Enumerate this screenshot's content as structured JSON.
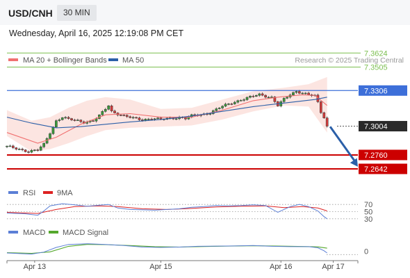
{
  "header": {
    "symbol": "USD/CNH",
    "timeframe": "30 MIN",
    "timestamp": "Wednesday, April 16, 2025 12:19:08 PM CET"
  },
  "colors": {
    "price": "#3a3a3a",
    "up_candle": "#3a9a3a",
    "down_candle": "#d23a3a",
    "ma20": "#f07070",
    "bollinger_fill": "#fbe0dc",
    "ma50": "#2b5fa8",
    "resistance": "#7bbf4f",
    "pivot": "#3d6fd9",
    "support": "#cc0000",
    "current_price": "#2a2a2a",
    "arrow": "#2b5fa8",
    "rsi": "#5b7fd6",
    "rsi_ma": "#dd2222",
    "macd": "#5b7fd6",
    "macd_signal": "#55a82d",
    "muted_text": "#999999"
  },
  "chart_data": [
    {
      "type": "candlestick",
      "title": "USD/CNH",
      "legend": [
        {
          "name": "MA 20 + Bollinger Bands",
          "color": "#f07070"
        },
        {
          "name": "MA 50",
          "color": "#2b5fa8"
        }
      ],
      "legend_placement": "top-left",
      "attribution": "Research © 2025 Trading Central",
      "ylim": [
        7.253,
        7.372
      ],
      "grid": false,
      "levels": [
        {
          "label": "7.3624",
          "value": 7.3624,
          "kind": "resistance"
        },
        {
          "label": "7.3505",
          "value": 7.3505,
          "kind": "resistance"
        },
        {
          "label": "7.3306",
          "value": 7.3306,
          "kind": "pivot"
        },
        {
          "label": "7.3004",
          "value": 7.3004,
          "kind": "last"
        },
        {
          "label": "7.2760",
          "value": 7.276,
          "kind": "support"
        },
        {
          "label": "7.2642",
          "value": 7.2642,
          "kind": "support"
        }
      ],
      "price_path": [
        [
          0,
          7.283
        ],
        [
          4,
          7.281
        ],
        [
          7,
          7.279
        ],
        [
          10,
          7.28
        ],
        [
          12,
          7.285
        ],
        [
          14,
          7.295
        ],
        [
          16,
          7.305
        ],
        [
          18,
          7.308
        ],
        [
          20,
          7.306
        ],
        [
          22,
          7.3055
        ],
        [
          25,
          7.304
        ],
        [
          28,
          7.305
        ],
        [
          30,
          7.309
        ],
        [
          32,
          7.315
        ],
        [
          33,
          7.318
        ],
        [
          34,
          7.313
        ],
        [
          36,
          7.311
        ],
        [
          38,
          7.309
        ],
        [
          41,
          7.307
        ],
        [
          44,
          7.306
        ],
        [
          47,
          7.307
        ],
        [
          50,
          7.306
        ],
        [
          53,
          7.307
        ],
        [
          56,
          7.308
        ],
        [
          58,
          7.307
        ],
        [
          60,
          7.309
        ],
        [
          63,
          7.31
        ],
        [
          66,
          7.312
        ],
        [
          69,
          7.316
        ],
        [
          71,
          7.318
        ],
        [
          73,
          7.32
        ],
        [
          76,
          7.323
        ],
        [
          79,
          7.325
        ],
        [
          82,
          7.327
        ],
        [
          84,
          7.326
        ],
        [
          86,
          7.325
        ],
        [
          88,
          7.318
        ],
        [
          90,
          7.323
        ],
        [
          92,
          7.327
        ],
        [
          94,
          7.33
        ],
        [
          96,
          7.329
        ],
        [
          98,
          7.327
        ],
        [
          100,
          7.326
        ],
        [
          101,
          7.32
        ],
        [
          102,
          7.312
        ],
        [
          103,
          7.308
        ],
        [
          104,
          7.3004
        ]
      ],
      "ma20_path": [
        [
          0,
          7.295
        ],
        [
          10,
          7.286
        ],
        [
          16,
          7.291
        ],
        [
          24,
          7.302
        ],
        [
          32,
          7.31
        ],
        [
          40,
          7.311
        ],
        [
          50,
          7.308
        ],
        [
          60,
          7.308
        ],
        [
          70,
          7.314
        ],
        [
          80,
          7.322
        ],
        [
          88,
          7.325
        ],
        [
          96,
          7.327
        ],
        [
          100,
          7.3265
        ],
        [
          104,
          7.318
        ]
      ],
      "ma50_path": [
        [
          0,
          7.308
        ],
        [
          8,
          7.303
        ],
        [
          16,
          7.299
        ],
        [
          24,
          7.3
        ],
        [
          32,
          7.302
        ],
        [
          40,
          7.304
        ],
        [
          50,
          7.306
        ],
        [
          60,
          7.309
        ],
        [
          70,
          7.313
        ],
        [
          80,
          7.317
        ],
        [
          90,
          7.32
        ],
        [
          100,
          7.323
        ],
        [
          104,
          7.325
        ]
      ],
      "bollinger_upper": [
        [
          0,
          7.314
        ],
        [
          8,
          7.305
        ],
        [
          14,
          7.308
        ],
        [
          20,
          7.316
        ],
        [
          26,
          7.322
        ],
        [
          32,
          7.325
        ],
        [
          40,
          7.323
        ],
        [
          50,
          7.315
        ],
        [
          60,
          7.316
        ],
        [
          70,
          7.323
        ],
        [
          80,
          7.33
        ],
        [
          90,
          7.333
        ],
        [
          98,
          7.336
        ],
        [
          104,
          7.342
        ]
      ],
      "bollinger_lower": [
        [
          0,
          7.292
        ],
        [
          8,
          7.279
        ],
        [
          14,
          7.281
        ],
        [
          20,
          7.286
        ],
        [
          26,
          7.292
        ],
        [
          32,
          7.297
        ],
        [
          40,
          7.299
        ],
        [
          50,
          7.3
        ],
        [
          60,
          7.301
        ],
        [
          70,
          7.306
        ],
        [
          80,
          7.313
        ],
        [
          90,
          7.318
        ],
        [
          98,
          7.317
        ],
        [
          104,
          7.295
        ]
      ],
      "arrow": {
        "from": [
          105,
          7.3
        ],
        "to": [
          114,
          7.266
        ]
      },
      "x_ticks": [
        {
          "label": "Apr 13",
          "x": 9
        },
        {
          "label": "Apr 15",
          "x": 50
        },
        {
          "label": "Apr 16",
          "x": 89
        },
        {
          "label": "Apr 17",
          "x": 106
        }
      ],
      "x_range": [
        0,
        114
      ]
    },
    {
      "type": "line",
      "title": "RSI",
      "legend": [
        {
          "name": "RSI",
          "color": "#5b7fd6"
        },
        {
          "name": "9MA",
          "color": "#dd2222"
        }
      ],
      "ylim": [
        20,
        80
      ],
      "levels": [
        {
          "label": "70",
          "value": 70
        },
        {
          "label": "50",
          "value": 50
        },
        {
          "label": "30",
          "value": 30
        }
      ],
      "rsi_path": [
        [
          0,
          46
        ],
        [
          6,
          44
        ],
        [
          10,
          40
        ],
        [
          12,
          52
        ],
        [
          14,
          66
        ],
        [
          18,
          72
        ],
        [
          22,
          69
        ],
        [
          26,
          65
        ],
        [
          30,
          68
        ],
        [
          33,
          70
        ],
        [
          36,
          60
        ],
        [
          40,
          56
        ],
        [
          44,
          55
        ],
        [
          48,
          54
        ],
        [
          52,
          56
        ],
        [
          56,
          58
        ],
        [
          60,
          62
        ],
        [
          64,
          64
        ],
        [
          68,
          67
        ],
        [
          72,
          66
        ],
        [
          76,
          67
        ],
        [
          80,
          69
        ],
        [
          84,
          67
        ],
        [
          88,
          48
        ],
        [
          92,
          64
        ],
        [
          95,
          70
        ],
        [
          98,
          64
        ],
        [
          101,
          52
        ],
        [
          103,
          36
        ],
        [
          104,
          30
        ]
      ],
      "rsi_ma_path": [
        [
          0,
          48
        ],
        [
          10,
          45
        ],
        [
          16,
          56
        ],
        [
          22,
          64
        ],
        [
          30,
          66
        ],
        [
          36,
          64
        ],
        [
          44,
          58
        ],
        [
          52,
          56
        ],
        [
          60,
          59
        ],
        [
          68,
          63
        ],
        [
          76,
          65
        ],
        [
          84,
          66
        ],
        [
          90,
          61
        ],
        [
          96,
          64
        ],
        [
          101,
          60
        ],
        [
          104,
          52
        ]
      ]
    },
    {
      "type": "line",
      "title": "MACD",
      "legend": [
        {
          "name": "MACD",
          "color": "#5b7fd6"
        },
        {
          "name": "MACD Signal",
          "color": "#55a82d"
        }
      ],
      "ylim": [
        -0.004,
        0.008
      ],
      "levels": [
        {
          "label": "0",
          "value": 0
        }
      ],
      "macd_path": [
        [
          0,
          -0.001
        ],
        [
          8,
          -0.0016
        ],
        [
          12,
          -0.0005
        ],
        [
          16,
          0.002
        ],
        [
          20,
          0.0036
        ],
        [
          26,
          0.004
        ],
        [
          32,
          0.0036
        ],
        [
          38,
          0.003
        ],
        [
          44,
          0.0022
        ],
        [
          50,
          0.002
        ],
        [
          56,
          0.0022
        ],
        [
          62,
          0.0026
        ],
        [
          68,
          0.0027
        ],
        [
          74,
          0.0028
        ],
        [
          80,
          0.003
        ],
        [
          86,
          0.0026
        ],
        [
          92,
          0.0024
        ],
        [
          98,
          0.0024
        ],
        [
          101,
          0.0018
        ],
        [
          103,
          0.0002
        ],
        [
          104,
          -0.001
        ]
      ],
      "macd_signal_path": [
        [
          0,
          -0.0008
        ],
        [
          8,
          -0.0012
        ],
        [
          14,
          -0.0004
        ],
        [
          20,
          0.0026
        ],
        [
          26,
          0.0036
        ],
        [
          32,
          0.0035
        ],
        [
          40,
          0.003
        ],
        [
          48,
          0.0024
        ],
        [
          56,
          0.0022
        ],
        [
          64,
          0.0025
        ],
        [
          72,
          0.0027
        ],
        [
          80,
          0.0029
        ],
        [
          88,
          0.0027
        ],
        [
          96,
          0.0025
        ],
        [
          101,
          0.0023
        ],
        [
          104,
          0.0016
        ]
      ]
    }
  ]
}
